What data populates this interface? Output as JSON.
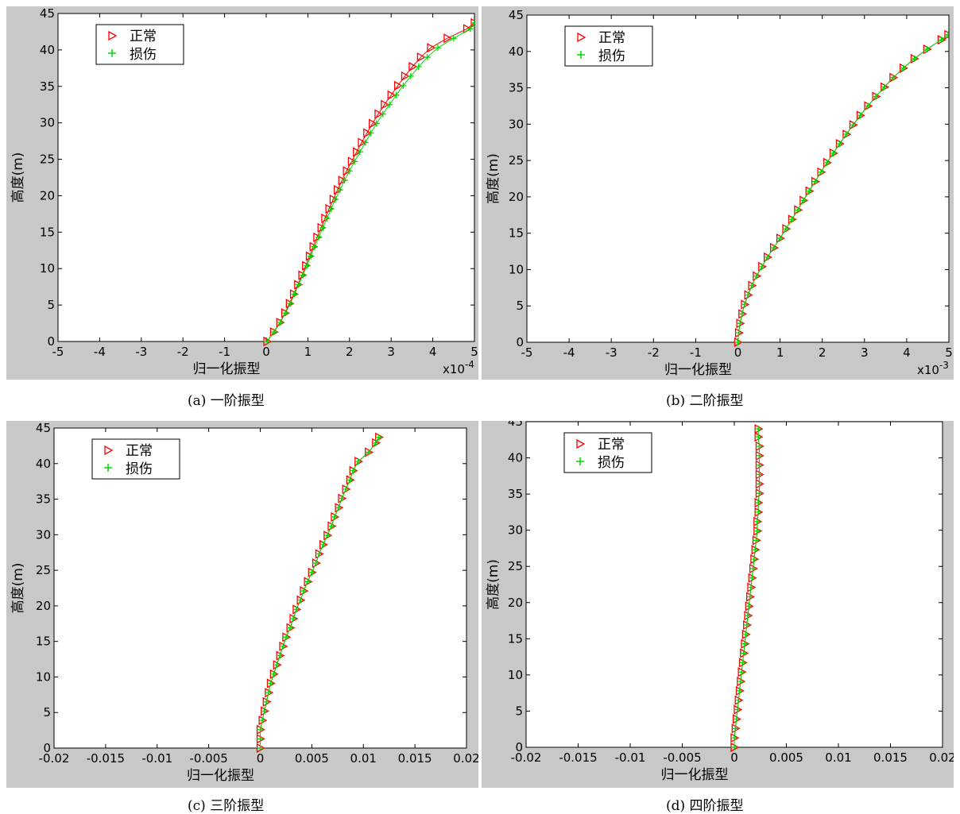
{
  "colors": {
    "normal": "#ff0000",
    "damaged": "#00d800",
    "frame_bg": "#c8c8c8"
  },
  "chart_data": [
    {
      "type": "scatter",
      "caption": "(a)  一阶振型",
      "xlabel": "归一化振型",
      "ylabel": "高度(m)",
      "xlim": [
        -5,
        5
      ],
      "ylim": [
        0,
        45
      ],
      "xticks": [
        "-5",
        "-4",
        "-3",
        "-2",
        "-1",
        "0",
        "1",
        "2",
        "3",
        "4",
        "5"
      ],
      "xtick_values": [
        -5,
        -4,
        -3,
        -2,
        -1,
        0,
        1,
        2,
        3,
        4,
        5
      ],
      "yticks": [
        "0",
        "5",
        "10",
        "15",
        "20",
        "25",
        "30",
        "35",
        "40",
        "45"
      ],
      "ytick_values": [
        0,
        5,
        10,
        15,
        20,
        25,
        30,
        35,
        40,
        45
      ],
      "x_multiplier_base": "x10",
      "x_multiplier_exp": "-4",
      "legend": {
        "placement": "top-left",
        "entries": [
          "正常",
          "损伤"
        ]
      },
      "y": [
        0,
        1.3,
        2.6,
        3.9,
        5.2,
        6.5,
        7.8,
        9.1,
        10.4,
        11.7,
        13,
        14.3,
        15.6,
        16.9,
        18.2,
        19.5,
        20.8,
        22.1,
        23.4,
        24.7,
        26,
        27.3,
        28.6,
        29.9,
        31.2,
        32.5,
        33.8,
        35.1,
        36.4,
        37.7,
        39,
        40.3,
        41.6,
        42.9,
        43.7
      ],
      "series": [
        {
          "name": "正常",
          "marker": "triangle-right",
          "x": [
            0.02,
            0.18,
            0.33,
            0.45,
            0.56,
            0.66,
            0.76,
            0.86,
            0.95,
            1.04,
            1.13,
            1.22,
            1.32,
            1.41,
            1.51,
            1.61,
            1.71,
            1.82,
            1.93,
            2.05,
            2.17,
            2.29,
            2.42,
            2.55,
            2.69,
            2.84,
            3.0,
            3.16,
            3.33,
            3.51,
            3.71,
            3.95,
            4.35,
            4.82,
            5.0
          ]
        },
        {
          "name": "损伤",
          "marker": "plus",
          "x": [
            0.02,
            0.19,
            0.34,
            0.46,
            0.58,
            0.68,
            0.78,
            0.88,
            0.98,
            1.07,
            1.16,
            1.26,
            1.36,
            1.46,
            1.56,
            1.66,
            1.77,
            1.88,
            2.0,
            2.12,
            2.25,
            2.38,
            2.51,
            2.65,
            2.8,
            2.96,
            3.12,
            3.29,
            3.47,
            3.66,
            3.87,
            4.12,
            4.5,
            4.9,
            5.0
          ]
        }
      ]
    },
    {
      "type": "scatter",
      "caption": "(b)  二阶振型",
      "xlabel": "归一化振型",
      "ylabel": "高度(m)",
      "xlim": [
        -5,
        5
      ],
      "ylim": [
        0,
        45
      ],
      "xticks": [
        "-5",
        "-4",
        "-3",
        "-2",
        "-1",
        "0",
        "1",
        "2",
        "3",
        "4",
        "5"
      ],
      "xtick_values": [
        -5,
        -4,
        -3,
        -2,
        -1,
        0,
        1,
        2,
        3,
        4,
        5
      ],
      "yticks": [
        "0",
        "5",
        "10",
        "15",
        "20",
        "25",
        "30",
        "35",
        "40",
        "45"
      ],
      "ytick_values": [
        0,
        5,
        10,
        15,
        20,
        25,
        30,
        35,
        40,
        45
      ],
      "x_multiplier_base": "x10",
      "x_multiplier_exp": "-3",
      "legend": {
        "placement": "top-left",
        "entries": [
          "正常",
          "损伤"
        ]
      },
      "y": [
        0,
        1.3,
        2.6,
        3.9,
        5.2,
        6.5,
        7.8,
        9.1,
        10.4,
        11.7,
        13,
        14.3,
        15.6,
        16.9,
        18.2,
        19.5,
        20.8,
        22.1,
        23.4,
        24.7,
        26,
        27.3,
        28.6,
        29.9,
        31.2,
        32.5,
        33.8,
        35.1,
        36.4,
        37.7,
        39,
        40.3,
        41.6,
        42.3
      ],
      "series": [
        {
          "name": "正常",
          "marker": "triangle-right",
          "x": [
            0.0,
            0.02,
            0.05,
            0.1,
            0.16,
            0.24,
            0.33,
            0.44,
            0.57,
            0.7,
            0.85,
            1.0,
            1.14,
            1.28,
            1.42,
            1.55,
            1.69,
            1.83,
            1.97,
            2.11,
            2.26,
            2.41,
            2.57,
            2.73,
            2.9,
            3.08,
            3.27,
            3.47,
            3.68,
            3.92,
            4.18,
            4.48,
            4.82,
            4.98
          ]
        },
        {
          "name": "损伤",
          "marker": "plus",
          "x": [
            0.0,
            0.02,
            0.05,
            0.1,
            0.16,
            0.24,
            0.33,
            0.44,
            0.57,
            0.7,
            0.85,
            1.0,
            1.14,
            1.28,
            1.42,
            1.55,
            1.69,
            1.83,
            1.97,
            2.11,
            2.26,
            2.41,
            2.57,
            2.73,
            2.9,
            3.08,
            3.27,
            3.47,
            3.68,
            3.92,
            4.18,
            4.48,
            4.82,
            4.98
          ]
        }
      ]
    },
    {
      "type": "scatter",
      "caption": "(c)  三阶振型",
      "xlabel": "归一化振型",
      "ylabel": "高度(m)",
      "xlim": [
        -0.02,
        0.02
      ],
      "ylim": [
        0,
        45
      ],
      "xticks": [
        "-0.02",
        "-0.015",
        "-0.01",
        "-0.005",
        "0",
        "0.005",
        "0.01",
        "0.015",
        "0.02"
      ],
      "xtick_values": [
        -0.02,
        -0.015,
        -0.01,
        -0.005,
        0,
        0.005,
        0.01,
        0.015,
        0.02
      ],
      "yticks": [
        "0",
        "5",
        "10",
        "15",
        "20",
        "25",
        "30",
        "35",
        "40",
        "45"
      ],
      "ytick_values": [
        0,
        5,
        10,
        15,
        20,
        25,
        30,
        35,
        40,
        45
      ],
      "legend": {
        "placement": "top-left",
        "entries": [
          "正常",
          "损伤"
        ]
      },
      "y": [
        0,
        1.3,
        2.6,
        3.9,
        5.2,
        6.5,
        7.8,
        9.1,
        10.4,
        11.7,
        13,
        14.3,
        15.6,
        16.9,
        18.2,
        19.5,
        20.8,
        22.1,
        23.4,
        24.7,
        26,
        27.3,
        28.6,
        29.9,
        31.2,
        32.5,
        33.8,
        35.1,
        36.4,
        37.7,
        39,
        40.3,
        41.6,
        42.9,
        43.7
      ],
      "series": [
        {
          "name": "正常",
          "marker": "triangle-right",
          "x": [
            0.0,
            0.0,
            0.0,
            0.0002,
            0.0004,
            0.0006,
            0.0008,
            0.001,
            0.0013,
            0.0016,
            0.0019,
            0.0022,
            0.0025,
            0.0029,
            0.0032,
            0.0035,
            0.0039,
            0.0042,
            0.0046,
            0.005,
            0.0054,
            0.0057,
            0.0061,
            0.0065,
            0.0069,
            0.0072,
            0.0076,
            0.0079,
            0.0083,
            0.0087,
            0.009,
            0.0095,
            0.0105,
            0.0112,
            0.0115
          ]
        },
        {
          "name": "损伤",
          "marker": "plus",
          "x": [
            0.0,
            0.0,
            0.0,
            0.0002,
            0.0004,
            0.0006,
            0.0008,
            0.001,
            0.0013,
            0.0016,
            0.0019,
            0.0022,
            0.0025,
            0.0029,
            0.0032,
            0.0035,
            0.0039,
            0.0042,
            0.0046,
            0.005,
            0.0054,
            0.0057,
            0.0061,
            0.0065,
            0.0069,
            0.0072,
            0.0076,
            0.0079,
            0.0083,
            0.0087,
            0.009,
            0.0095,
            0.0105,
            0.0112,
            0.0115
          ]
        }
      ]
    },
    {
      "type": "scatter",
      "caption": "(d)  四阶振型",
      "xlabel": "归一化振型",
      "ylabel": "高度(m)",
      "xlim": [
        -0.02,
        0.02
      ],
      "ylim": [
        0,
        45
      ],
      "xticks": [
        "-0.02",
        "-0.015",
        "-0.01",
        "-0.005",
        "0",
        "0.005",
        "0.01",
        "0.015",
        "0.02"
      ],
      "xtick_values": [
        -0.02,
        -0.015,
        -0.01,
        -0.005,
        0,
        0.005,
        0.01,
        0.015,
        0.02
      ],
      "yticks": [
        "0",
        "5",
        "10",
        "15",
        "20",
        "25",
        "30",
        "35",
        "40",
        "45"
      ],
      "ytick_values": [
        0,
        5,
        10,
        15,
        20,
        25,
        30,
        35,
        40,
        45
      ],
      "legend": {
        "placement": "top-left",
        "entries": [
          "正常",
          "损伤"
        ]
      },
      "y": [
        0,
        1.3,
        2.6,
        3.9,
        5.2,
        6.5,
        7.8,
        9.1,
        10.4,
        11.7,
        13,
        14.3,
        15.6,
        16.9,
        18.2,
        19.5,
        20.8,
        22.1,
        23.4,
        24.7,
        26,
        27.3,
        28.6,
        29.9,
        31.2,
        32.5,
        33.8,
        35.1,
        36.4,
        37.7,
        39,
        40.3,
        41.6,
        42.9,
        44
      ],
      "series": [
        {
          "name": "正常",
          "marker": "triangle-right",
          "x": [
            0.0,
            0.0,
            0.0001,
            0.0002,
            0.0003,
            0.0004,
            0.0005,
            0.0006,
            0.0007,
            0.0008,
            0.0009,
            0.001,
            0.0011,
            0.0012,
            0.0013,
            0.0014,
            0.0015,
            0.0016,
            0.0017,
            0.0018,
            0.0019,
            0.002,
            0.0021,
            0.0022,
            0.0022,
            0.0023,
            0.0023,
            0.0024,
            0.0024,
            0.0024,
            0.0024,
            0.0024,
            0.0024,
            0.0023,
            0.0023
          ]
        },
        {
          "name": "损伤",
          "marker": "plus",
          "x": [
            0.0,
            0.0,
            0.0001,
            0.0002,
            0.0003,
            0.0004,
            0.0005,
            0.0006,
            0.0007,
            0.0008,
            0.0009,
            0.001,
            0.0011,
            0.0012,
            0.0013,
            0.0014,
            0.0015,
            0.0016,
            0.0017,
            0.0018,
            0.0019,
            0.002,
            0.0021,
            0.0022,
            0.0022,
            0.0023,
            0.0023,
            0.0024,
            0.0024,
            0.0024,
            0.0024,
            0.0024,
            0.0024,
            0.0023,
            0.0023
          ]
        }
      ]
    }
  ]
}
